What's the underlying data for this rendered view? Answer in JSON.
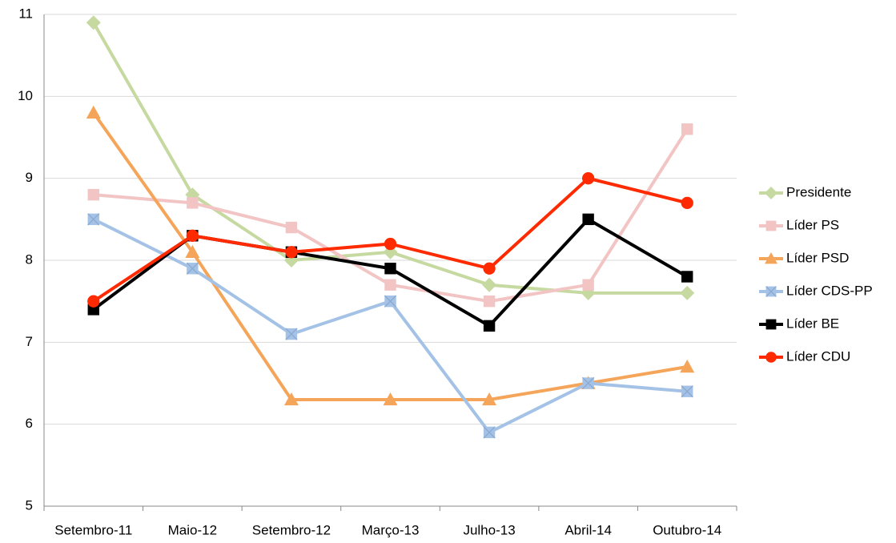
{
  "chart_data": {
    "type": "line",
    "categories": [
      "Setembro-11",
      "Maio-12",
      "Setembro-12",
      "Março-13",
      "Julho-13",
      "Abril-14",
      "Outubro-14"
    ],
    "series": [
      {
        "name": "Presidente",
        "color": "#c6d9a0",
        "marker": "diamond",
        "values": [
          10.9,
          8.8,
          8.0,
          8.1,
          7.7,
          7.6,
          7.6
        ]
      },
      {
        "name": "Líder PS",
        "color": "#f2c4c4",
        "marker": "square",
        "values": [
          8.8,
          8.7,
          8.4,
          7.7,
          7.5,
          7.7,
          9.6
        ]
      },
      {
        "name": "Líder PSD",
        "color": "#f5a55a",
        "marker": "triangle",
        "values": [
          9.8,
          8.1,
          6.3,
          6.3,
          6.3,
          6.5,
          6.7
        ]
      },
      {
        "name": "Líder CDS-PP",
        "color": "#a4c2e6",
        "marker": "xsquare",
        "values": [
          8.5,
          7.9,
          7.1,
          7.5,
          5.9,
          6.5,
          6.4
        ]
      },
      {
        "name": "Líder BE",
        "color": "#000000",
        "marker": "square",
        "values": [
          7.4,
          8.3,
          8.1,
          7.9,
          7.2,
          8.5,
          7.8
        ]
      },
      {
        "name": "Líder CDU",
        "color": "#ff2a00",
        "marker": "circle",
        "values": [
          7.5,
          8.3,
          8.1,
          8.2,
          7.9,
          9.0,
          8.7
        ]
      }
    ],
    "ylim": [
      5,
      11
    ],
    "yticks": [
      5,
      6,
      7,
      8,
      9,
      10,
      11
    ],
    "grid": true,
    "legend": "right"
  }
}
